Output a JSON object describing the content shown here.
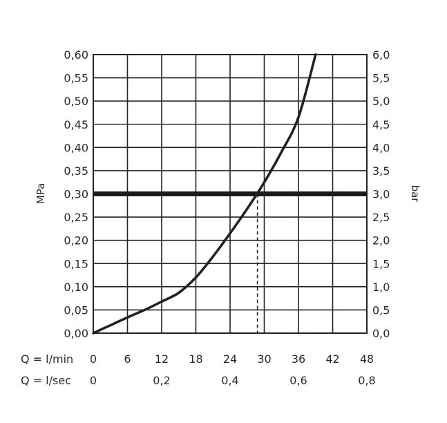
{
  "chart_data": {
    "type": "line",
    "title": "",
    "ylabel_left": "MPa",
    "ylabel_right": "bar",
    "x_lpm_label": "Q = l/min",
    "x_lps_label": "Q = l/sec",
    "xlim": [
      0,
      48
    ],
    "ylim": [
      0,
      0.6
    ],
    "grid": true,
    "x_ticks_lpm": [
      "0",
      "6",
      "12",
      "18",
      "24",
      "30",
      "36",
      "42",
      "48"
    ],
    "x_ticks_lps": [
      "0",
      "0,2",
      "0,4",
      "0,6",
      "0,8"
    ],
    "y_ticks_mpa": [
      "0,00",
      "0,05",
      "0,10",
      "0,15",
      "0,20",
      "0,25",
      "0,30",
      "0,35",
      "0,40",
      "0,45",
      "0,50",
      "0,55",
      "0,60"
    ],
    "y_ticks_bar": [
      "0,0",
      "0,5",
      "1,0",
      "1,5",
      "2,0",
      "2,5",
      "3,0",
      "3,5",
      "4,0",
      "4,5",
      "5,0",
      "5,5",
      "6,0"
    ],
    "series": [
      {
        "x": [
          0,
          3,
          6,
          9,
          12,
          15,
          18,
          21,
          24,
          27,
          30,
          33,
          36,
          39
        ],
        "y": [
          0.0,
          0.017,
          0.034,
          0.05,
          0.068,
          0.087,
          0.12,
          0.165,
          0.215,
          0.268,
          0.325,
          0.39,
          0.465,
          0.6
        ]
      }
    ],
    "reference_line": {
      "y": 0.3,
      "x_intersect": 28.8
    },
    "colors": {
      "line": "#222222",
      "text": "#2a2a2a"
    }
  }
}
